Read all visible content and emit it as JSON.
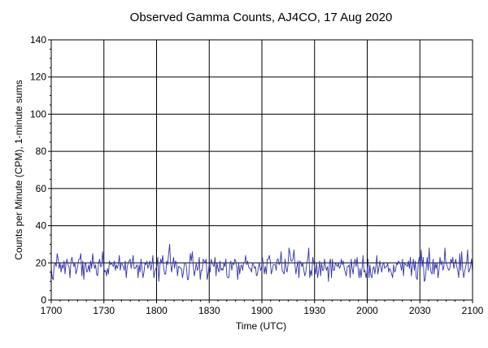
{
  "chart_data": {
    "type": "line",
    "title": "Observed Gamma Counts, AJ4CO, 17 Aug 2020",
    "xlabel": "Time (UTC)",
    "ylabel": "Counts per Minute (CPM), 1-minute sums",
    "x_tick_labels": [
      "1700",
      "1730",
      "1800",
      "1830",
      "1900",
      "1930",
      "2000",
      "2030",
      "2100"
    ],
    "y_tick_labels": [
      "0",
      "20",
      "40",
      "60",
      "80",
      "100",
      "120",
      "140"
    ],
    "x_start": "17:00",
    "x_end": "21:00",
    "ylim": [
      0,
      140
    ],
    "grid": true,
    "line_color": "#3333aa",
    "series": [
      {
        "values": [
          17,
          12,
          11,
          19,
          20,
          18,
          25,
          22,
          17,
          20,
          15,
          19,
          17,
          21,
          14,
          20,
          22,
          19,
          18,
          12,
          21,
          23,
          20,
          18,
          20,
          14,
          16,
          19,
          22,
          22,
          25,
          13,
          21,
          11,
          19,
          20,
          15,
          16,
          19,
          15,
          21,
          17,
          25,
          20,
          17,
          19,
          14,
          13,
          20,
          22,
          18,
          18,
          26,
          19,
          15,
          16,
          13,
          17,
          14,
          21,
          19,
          20,
          19,
          18,
          21,
          16,
          19,
          17,
          19,
          24,
          16,
          20,
          19,
          18,
          16,
          21,
          12,
          18,
          20,
          21,
          22,
          17,
          20,
          24,
          17,
          17,
          18,
          19,
          12,
          19,
          15,
          22,
          17,
          12,
          15,
          20,
          19,
          21,
          17,
          19,
          21,
          16,
          19,
          24,
          12,
          15,
          17,
          18,
          23,
          10,
          18,
          22,
          20,
          24,
          17,
          14,
          14,
          21,
          19,
          25,
          30,
          20,
          15,
          19,
          23,
          17,
          21,
          20,
          13,
          18,
          18,
          17,
          17,
          12,
          15,
          20,
          20,
          18,
          11,
          11,
          18,
          25,
          21,
          26,
          18,
          13,
          16,
          20,
          16,
          17,
          23,
          11,
          16,
          16,
          22,
          21,
          20,
          22,
          11,
          14,
          19,
          15,
          22,
          20,
          19,
          18,
          23,
          13,
          20,
          17,
          15,
          21,
          16,
          17,
          16,
          20,
          18,
          22,
          13,
          12,
          12,
          19,
          21,
          16,
          20,
          19,
          22,
          21,
          18,
          11,
          20,
          14,
          18,
          19,
          16,
          20,
          20,
          24,
          19,
          21,
          18,
          17,
          17,
          15,
          20,
          19,
          17,
          18,
          13,
          14,
          18,
          20,
          16,
          17,
          23,
          19,
          14,
          18,
          14,
          22,
          22,
          24,
          21,
          14,
          16,
          19,
          19,
          19,
          16,
          22,
          22,
          19,
          20,
          26,
          16,
          15,
          14,
          22,
          17,
          15,
          19,
          28,
          25,
          21,
          21,
          22,
          27,
          19,
          14,
          18,
          21,
          12,
          21,
          20,
          18,
          20,
          16,
          13,
          15,
          20,
          22,
          28,
          12,
          16,
          13,
          23,
          20,
          18,
          14,
          20,
          12,
          16,
          21,
          13,
          20,
          16,
          16,
          22,
          18,
          16,
          18,
          10,
          20,
          22,
          12,
          22,
          16,
          16,
          20,
          19,
          18,
          20,
          17,
          18,
          22,
          19,
          21,
          17,
          15,
          13,
          18,
          18,
          19,
          12,
          22,
          17,
          14,
          20,
          22,
          18,
          23,
          17,
          12,
          17,
          12,
          17,
          24,
          15,
          16,
          12,
          15,
          22,
          12,
          19,
          13,
          12,
          17,
          18,
          14,
          18,
          24,
          14,
          17,
          21,
          18,
          15,
          19,
          20,
          17,
          18,
          18,
          20,
          15,
          17,
          16,
          14,
          12,
          19,
          15,
          16,
          20,
          19,
          21,
          20,
          19,
          16,
          22,
          13,
          20,
          19,
          19,
          18,
          21,
          17,
          23,
          13,
          18,
          22,
          16,
          21,
          12,
          11,
          20,
          23,
          17,
          27,
          18,
          23,
          10,
          11,
          17,
          23,
          16,
          28,
          18,
          15,
          14,
          22,
          14,
          20,
          17,
          20,
          12,
          16,
          23,
          19,
          21,
          16,
          18,
          28,
          20,
          19,
          17,
          16,
          17,
          22,
          20,
          23,
          17,
          20,
          22,
          18,
          16,
          12,
          25,
          16,
          26,
          17,
          12,
          15,
          18,
          20,
          27,
          15,
          16,
          18,
          22,
          15
        ]
      }
    ]
  }
}
